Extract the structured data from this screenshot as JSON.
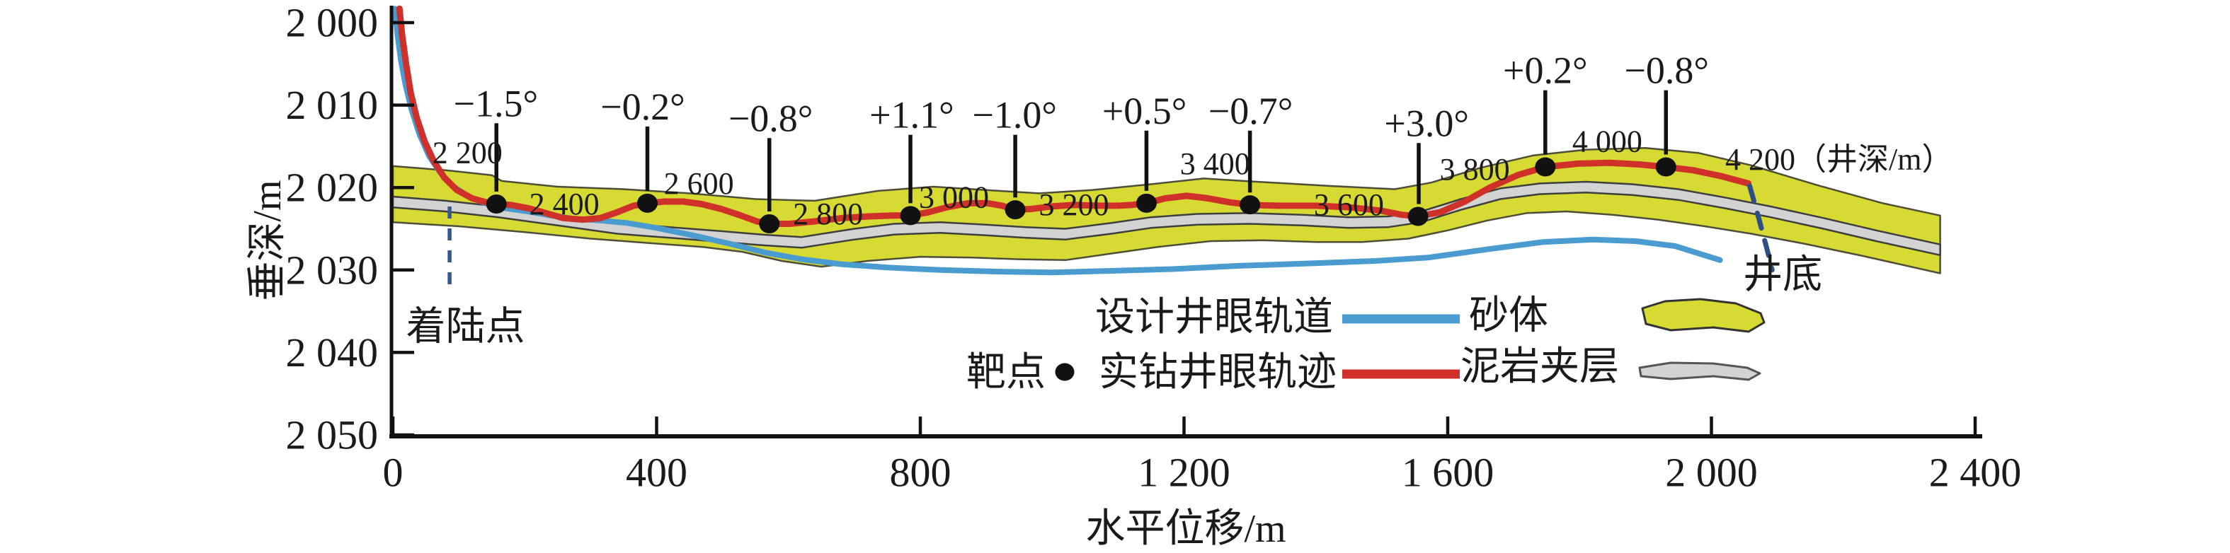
{
  "chart_data": {
    "type": "line",
    "title": "",
    "xlabel": "水平位移/m",
    "ylabel": "垂深/m",
    "xlim": [
      0,
      2400
    ],
    "ylim": [
      2000,
      2050
    ],
    "y_inverted": true,
    "grid": false,
    "legend_position": "inside-bottom-center-right",
    "x_ticks": {
      "values": [
        0,
        400,
        800,
        1200,
        1600,
        2000,
        2400
      ],
      "labels": [
        "0",
        "400",
        "800",
        "1 200",
        "1 600",
        "2 000",
        "2 400"
      ]
    },
    "y_ticks": {
      "values": [
        2000,
        2010,
        2020,
        2030,
        2040,
        2050
      ],
      "labels": [
        "2 000",
        "2 010",
        "2 020",
        "2 030",
        "2 040",
        "2 050"
      ]
    },
    "series": [
      {
        "name": "设计井眼轨道",
        "color": "#4a9bd0",
        "style": "solid",
        "points": [
          [
            3,
            1998.3
          ],
          [
            7,
            2001.5
          ],
          [
            12,
            2004.5
          ],
          [
            19,
            2007.5
          ],
          [
            28,
            2010.5
          ],
          [
            40,
            2013.5
          ],
          [
            55,
            2016.2
          ],
          [
            72,
            2018.2
          ],
          [
            92,
            2019.9
          ],
          [
            115,
            2021.1
          ],
          [
            140,
            2021.9
          ],
          [
            170,
            2022.5
          ],
          [
            205,
            2022.9
          ],
          [
            240,
            2023.4
          ],
          [
            275,
            2023.8
          ],
          [
            315,
            2024.0
          ],
          [
            355,
            2024.3
          ],
          [
            400,
            2024.9
          ],
          [
            455,
            2025.8
          ],
          [
            510,
            2026.8
          ],
          [
            565,
            2027.9
          ],
          [
            620,
            2028.7
          ],
          [
            680,
            2029.3
          ],
          [
            750,
            2029.7
          ],
          [
            830,
            2030.0
          ],
          [
            920,
            2030.2
          ],
          [
            1000,
            2030.3
          ],
          [
            1090,
            2030.1
          ],
          [
            1180,
            2029.9
          ],
          [
            1280,
            2029.5
          ],
          [
            1390,
            2029.2
          ],
          [
            1490,
            2028.9
          ],
          [
            1570,
            2028.5
          ],
          [
            1660,
            2027.5
          ],
          [
            1745,
            2026.6
          ],
          [
            1820,
            2026.3
          ],
          [
            1885,
            2026.5
          ],
          [
            1945,
            2027.1
          ],
          [
            2013,
            2028.8
          ]
        ]
      },
      {
        "name": "实钻井眼轨迹",
        "color": "#d0302a",
        "style": "solid",
        "points": [
          [
            10,
            1998.3
          ],
          [
            14,
            2001.5
          ],
          [
            20,
            2005.0
          ],
          [
            27,
            2008.5
          ],
          [
            36,
            2011.5
          ],
          [
            48,
            2014.4
          ],
          [
            62,
            2016.8
          ],
          [
            78,
            2018.8
          ],
          [
            97,
            2020.3
          ],
          [
            120,
            2021.3
          ],
          [
            142,
            2021.8
          ],
          [
            157,
            2022.0
          ],
          [
            178,
            2022.1
          ],
          [
            205,
            2022.5
          ],
          [
            232,
            2023.1
          ],
          [
            258,
            2023.7
          ],
          [
            288,
            2023.9
          ],
          [
            315,
            2023.7
          ],
          [
            340,
            2023.0
          ],
          [
            365,
            2022.2
          ],
          [
            386,
            2021.9
          ],
          [
            412,
            2021.7
          ],
          [
            440,
            2021.7
          ],
          [
            468,
            2022.0
          ],
          [
            498,
            2022.6
          ],
          [
            528,
            2023.4
          ],
          [
            552,
            2024.1
          ],
          [
            571,
            2024.4
          ],
          [
            602,
            2024.4
          ],
          [
            640,
            2024.1
          ],
          [
            682,
            2023.7
          ],
          [
            722,
            2023.5
          ],
          [
            758,
            2023.4
          ],
          [
            785,
            2023.4
          ],
          [
            812,
            2023.0
          ],
          [
            840,
            2022.4
          ],
          [
            872,
            2021.9
          ],
          [
            902,
            2021.9
          ],
          [
            924,
            2022.2
          ],
          [
            944,
            2022.7
          ],
          [
            968,
            2022.6
          ],
          [
            998,
            2022.3
          ],
          [
            1033,
            2022.1
          ],
          [
            1066,
            2022.2
          ],
          [
            1100,
            2022.2
          ],
          [
            1122,
            2022.1
          ],
          [
            1143,
            2021.9
          ],
          [
            1172,
            2021.3
          ],
          [
            1204,
            2021.0
          ],
          [
            1236,
            2021.3
          ],
          [
            1270,
            2021.8
          ],
          [
            1300,
            2022.1
          ],
          [
            1342,
            2022.2
          ],
          [
            1400,
            2022.2
          ],
          [
            1452,
            2022.4
          ],
          [
            1498,
            2022.8
          ],
          [
            1530,
            2023.3
          ],
          [
            1555,
            2023.5
          ],
          [
            1588,
            2023.0
          ],
          [
            1626,
            2021.7
          ],
          [
            1664,
            2020.0
          ],
          [
            1706,
            2018.5
          ],
          [
            1748,
            2017.5
          ],
          [
            1798,
            2017.1
          ],
          [
            1845,
            2017.0
          ],
          [
            1892,
            2017.2
          ],
          [
            1931,
            2017.5
          ],
          [
            1972,
            2017.9
          ],
          [
            2014,
            2018.6
          ],
          [
            2056,
            2019.5
          ]
        ]
      },
      {
        "name": "well-continuation-dashed",
        "color": "#2f4f86",
        "style": "dashed",
        "points": [
          [
            2058,
            2019.8
          ],
          [
            2072,
            2023.8
          ],
          [
            2086,
            2028.0
          ],
          [
            2092,
            2030.0
          ]
        ]
      }
    ],
    "bands": {
      "sand_body": {
        "label": "砂体",
        "fill": "#d7da33",
        "outline": "#4e4e38",
        "top": [
          [
            0,
            2017.4
          ],
          [
            80,
            2017.9
          ],
          [
            150,
            2018.5
          ],
          [
            165,
            2019.2
          ],
          [
            250,
            2019.9
          ],
          [
            350,
            2020.2
          ],
          [
            450,
            2020.7
          ],
          [
            550,
            2021.4
          ],
          [
            640,
            2021.6
          ],
          [
            736,
            2020.4
          ],
          [
            820,
            2019.9
          ],
          [
            900,
            2020.3
          ],
          [
            980,
            2020.7
          ],
          [
            1060,
            2020.3
          ],
          [
            1150,
            2019.6
          ],
          [
            1230,
            2018.9
          ],
          [
            1310,
            2019.3
          ],
          [
            1420,
            2019.8
          ],
          [
            1520,
            2020.2
          ],
          [
            1575,
            2019.4
          ],
          [
            1650,
            2017.6
          ],
          [
            1730,
            2016.1
          ],
          [
            1810,
            2015.4
          ],
          [
            1900,
            2015.2
          ],
          [
            1980,
            2015.8
          ],
          [
            2060,
            2017.3
          ],
          [
            2160,
            2019.7
          ],
          [
            2260,
            2021.9
          ],
          [
            2347,
            2023.4
          ]
        ],
        "bottom": [
          [
            0,
            2024.2
          ],
          [
            100,
            2024.7
          ],
          [
            200,
            2025.4
          ],
          [
            300,
            2026.2
          ],
          [
            400,
            2026.8
          ],
          [
            470,
            2027.2
          ],
          [
            530,
            2027.8
          ],
          [
            590,
            2028.9
          ],
          [
            650,
            2029.6
          ],
          [
            720,
            2028.9
          ],
          [
            800,
            2028.4
          ],
          [
            880,
            2028.5
          ],
          [
            950,
            2028.7
          ],
          [
            1020,
            2028.8
          ],
          [
            1090,
            2028.0
          ],
          [
            1160,
            2027.2
          ],
          [
            1240,
            2026.5
          ],
          [
            1320,
            2026.4
          ],
          [
            1400,
            2026.6
          ],
          [
            1470,
            2026.6
          ],
          [
            1540,
            2026.2
          ],
          [
            1600,
            2025.2
          ],
          [
            1660,
            2024.0
          ],
          [
            1720,
            2023.1
          ],
          [
            1780,
            2022.9
          ],
          [
            1850,
            2023.3
          ],
          [
            1920,
            2023.9
          ],
          [
            1990,
            2024.7
          ],
          [
            2060,
            2025.6
          ],
          [
            2140,
            2026.8
          ],
          [
            2230,
            2028.3
          ],
          [
            2347,
            2030.4
          ]
        ]
      },
      "mud_interlayer": {
        "label": "泥岩夹层",
        "fill": "#d3d3d3",
        "outline": "#3e3e3e",
        "thickness_m": 1.3,
        "top": [
          [
            0,
            2021.1
          ],
          [
            80,
            2021.6
          ],
          [
            160,
            2022.3
          ],
          [
            250,
            2023.3
          ],
          [
            340,
            2024.3
          ],
          [
            420,
            2024.8
          ],
          [
            500,
            2025.3
          ],
          [
            560,
            2025.7
          ],
          [
            620,
            2026.0
          ],
          [
            700,
            2025.0
          ],
          [
            760,
            2024.4
          ],
          [
            830,
            2024.2
          ],
          [
            900,
            2024.5
          ],
          [
            960,
            2024.8
          ],
          [
            1020,
            2025.0
          ],
          [
            1090,
            2024.3
          ],
          [
            1150,
            2023.6
          ],
          [
            1220,
            2023.2
          ],
          [
            1300,
            2023.1
          ],
          [
            1380,
            2023.3
          ],
          [
            1450,
            2023.6
          ],
          [
            1510,
            2023.5
          ],
          [
            1560,
            2022.9
          ],
          [
            1620,
            2021.4
          ],
          [
            1680,
            2020.1
          ],
          [
            1740,
            2019.5
          ],
          [
            1810,
            2019.3
          ],
          [
            1880,
            2019.6
          ],
          [
            1950,
            2020.2
          ],
          [
            2020,
            2021.2
          ],
          [
            2090,
            2022.3
          ],
          [
            2170,
            2023.7
          ],
          [
            2250,
            2025.2
          ],
          [
            2347,
            2026.9
          ]
        ]
      }
    },
    "target_points": {
      "label": "靶点",
      "color": "#111111",
      "points": [
        [
          157,
          2022.0
        ],
        [
          386,
          2021.9
        ],
        [
          571,
          2024.4
        ],
        [
          785,
          2023.4
        ],
        [
          944,
          2022.7
        ],
        [
          1143,
          2021.9
        ],
        [
          1300,
          2022.1
        ],
        [
          1555,
          2023.5
        ],
        [
          1748,
          2017.5
        ],
        [
          1931,
          2017.5
        ]
      ]
    },
    "angle_annotations": [
      {
        "label": "−1.5°",
        "label_x": 156,
        "label_depth": 2009.8,
        "dot_x": 157,
        "dot_depth": 2022.0
      },
      {
        "label": "−0.2°",
        "label_x": 379,
        "label_depth": 2010.2,
        "dot_x": 386,
        "dot_depth": 2021.9
      },
      {
        "label": "−0.8°",
        "label_x": 573,
        "label_depth": 2011.6,
        "dot_x": 571,
        "dot_depth": 2024.4
      },
      {
        "label": "+1.1°",
        "label_x": 787,
        "label_depth": 2011.2,
        "dot_x": 785,
        "dot_depth": 2023.4
      },
      {
        "label": "−1.0°",
        "label_x": 943,
        "label_depth": 2011.2,
        "dot_x": 944,
        "dot_depth": 2022.7
      },
      {
        "label": "+0.5°",
        "label_x": 1140,
        "label_depth": 2010.7,
        "dot_x": 1143,
        "dot_depth": 2021.9
      },
      {
        "label": "−0.7°",
        "label_x": 1301,
        "label_depth": 2010.7,
        "dot_x": 1300,
        "dot_depth": 2022.1
      },
      {
        "label": "+3.0°",
        "label_x": 1568,
        "label_depth": 2012.2,
        "dot_x": 1556,
        "dot_depth": 2023.5
      },
      {
        "label": "+0.2°",
        "label_x": 1748,
        "label_depth": 2005.8,
        "dot_x": 1748,
        "dot_depth": 2017.5
      },
      {
        "label": "−0.8°",
        "label_x": 1932,
        "label_depth": 2005.8,
        "dot_x": 1931,
        "dot_depth": 2017.5
      }
    ],
    "md_labels": {
      "color": "#cc2128",
      "items": [
        {
          "text": "2 200",
          "x": 113,
          "depth": 2015.8,
          "anchor": "middle"
        },
        {
          "text": "2 400",
          "x": 260,
          "depth": 2022.0,
          "anchor": "middle"
        },
        {
          "text": "2 600",
          "x": 464,
          "depth": 2019.5,
          "anchor": "middle"
        },
        {
          "text": "2 800",
          "x": 660,
          "depth": 2023.2,
          "anchor": "middle"
        },
        {
          "text": "3 000",
          "x": 851,
          "depth": 2021.2,
          "anchor": "middle"
        },
        {
          "text": "3 200",
          "x": 1033,
          "depth": 2022.1,
          "anchor": "middle"
        },
        {
          "text": "3 400",
          "x": 1247,
          "depth": 2017.1,
          "anchor": "middle"
        },
        {
          "text": "3 600",
          "x": 1450,
          "depth": 2022.1,
          "anchor": "middle"
        },
        {
          "text": "3 800",
          "x": 1641,
          "depth": 2017.8,
          "anchor": "middle"
        },
        {
          "text": "4 000",
          "x": 1842,
          "depth": 2014.4,
          "anchor": "middle"
        },
        {
          "text": "4 200（井深/m）",
          "x": 2021,
          "depth": 2016.6,
          "anchor": "start"
        }
      ]
    },
    "annotations": {
      "landing_point": {
        "label": "着陆点",
        "line_x": 86,
        "line_top_depth": 2022.3,
        "line_bottom_depth": 2032.8,
        "label_x": 110,
        "label_depth": 2036.9
      },
      "well_bottom": {
        "label": "井底",
        "label_x": 2108,
        "label_depth": 2030.6
      }
    },
    "legend": {
      "items": [
        {
          "label": "设计井眼轨道",
          "swatch": "line",
          "color": "#4a9bd0"
        },
        {
          "label": "实钻井眼轨迹",
          "swatch": "line",
          "color": "#d0302a"
        },
        {
          "label": "靶点",
          "swatch": "dot",
          "color": "#111111"
        },
        {
          "label": "砂体",
          "swatch": "band",
          "color": "#d7da33"
        },
        {
          "label": "泥岩夹层",
          "swatch": "band",
          "color": "#d3d3d3"
        }
      ]
    }
  }
}
